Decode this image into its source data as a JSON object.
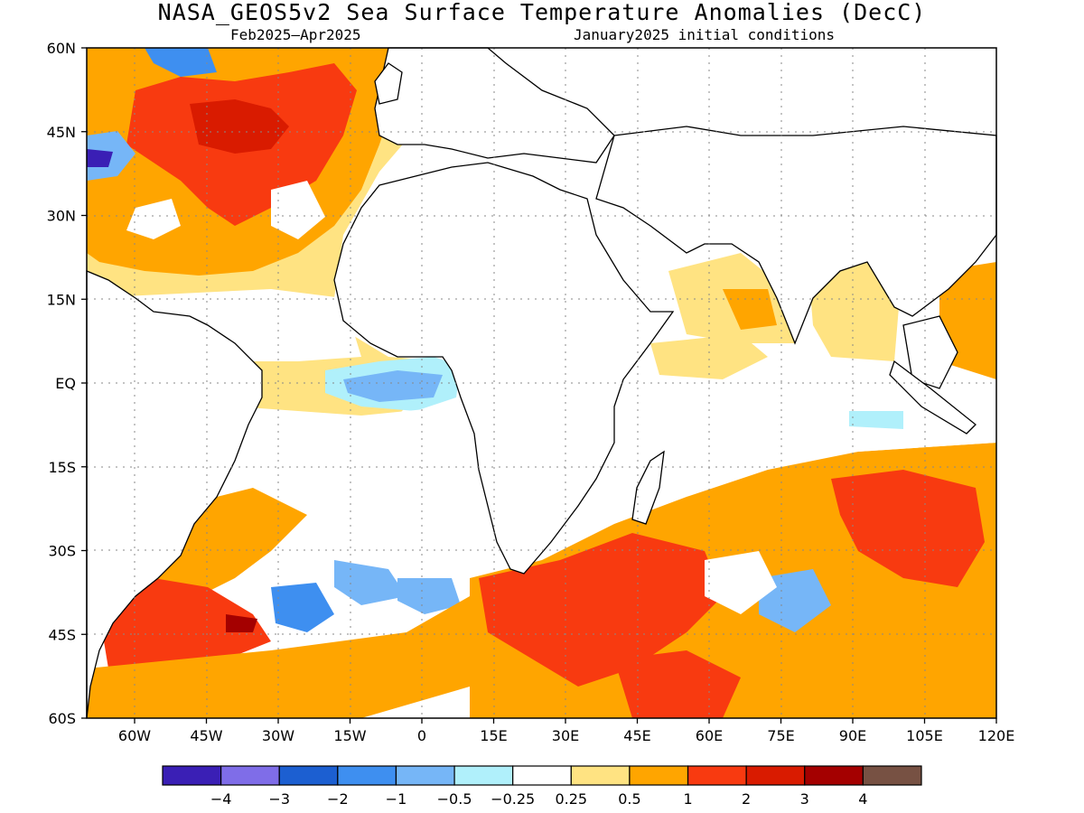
{
  "title": "NASA_GEOS5v2 Sea Surface Temperature Anomalies (DecC)",
  "subtitle_left": "Feb2025–Apr2025",
  "subtitle_right": "January2025 initial conditions",
  "map": {
    "lon_range": [
      -70,
      120
    ],
    "lat_range": [
      -60,
      60
    ],
    "lat_ticks": [
      {
        "value": 60,
        "label": "60N"
      },
      {
        "value": 45,
        "label": "45N"
      },
      {
        "value": 30,
        "label": "30N"
      },
      {
        "value": 15,
        "label": "15N"
      },
      {
        "value": 0,
        "label": "EQ"
      },
      {
        "value": -15,
        "label": "15S"
      },
      {
        "value": -30,
        "label": "30S"
      },
      {
        "value": -45,
        "label": "45S"
      },
      {
        "value": -60,
        "label": "60S"
      }
    ],
    "lon_ticks": [
      {
        "value": -60,
        "label": "60W"
      },
      {
        "value": -45,
        "label": "45W"
      },
      {
        "value": -30,
        "label": "30W"
      },
      {
        "value": -15,
        "label": "15W"
      },
      {
        "value": 0,
        "label": "0"
      },
      {
        "value": 15,
        "label": "15E"
      },
      {
        "value": 30,
        "label": "30E"
      },
      {
        "value": 45,
        "label": "45E"
      },
      {
        "value": 60,
        "label": "60E"
      },
      {
        "value": 75,
        "label": "75E"
      },
      {
        "value": 90,
        "label": "90E"
      },
      {
        "value": 105,
        "label": "105E"
      },
      {
        "value": 120,
        "label": "120E"
      }
    ],
    "grid": "dotted"
  },
  "colorbar": {
    "colors": [
      "#3a1fb5",
      "#7f6de8",
      "#1c5fd1",
      "#3e8ff0",
      "#76b6f7",
      "#b0f0fb",
      "#ffffff",
      "#ffe382",
      "#ffa500",
      "#f83a10",
      "#d91b00",
      "#a40000",
      "#775143"
    ],
    "labels": [
      "−4",
      "−3",
      "−2",
      "−1",
      "−0.5",
      "−0.25",
      "0.25",
      "0.5",
      "1",
      "2",
      "3",
      "4"
    ]
  }
}
